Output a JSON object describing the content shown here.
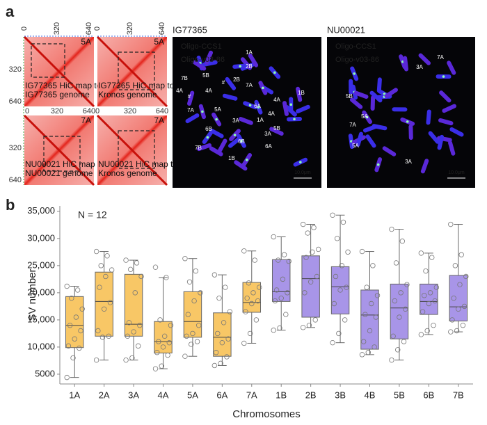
{
  "panel_a": {
    "label": "a",
    "axis_ticks": [
      0,
      320,
      640
    ],
    "hic_maps": [
      {
        "chrom": "5A",
        "caption": [
          "IG77365 HiC map to",
          "IG77365 genome"
        ]
      },
      {
        "chrom": "5A",
        "caption": [
          "IG77365 HiC map to",
          "Kronos genome"
        ]
      },
      {
        "chrom": "7A",
        "caption": [
          "NU00021 HiC map to",
          "NU00021 genome"
        ]
      },
      {
        "chrom": "7A",
        "caption": [
          "NU00021 HiC map to",
          "Kronos genome"
        ]
      }
    ],
    "images": [
      {
        "title": "IG77365",
        "probes": [
          "Oligo-CCS1",
          "Oligo-v03-86"
        ],
        "scale_bar": "10.0μm",
        "chromosome_labels": [
          "1A",
          "2B",
          "5B",
          "7B",
          "2B",
          "4A",
          "#",
          "4A",
          "7A",
          "1B",
          "#",
          "4A",
          "6A",
          "7A",
          "5A",
          "4A",
          "1A",
          "3A",
          "6B",
          "5B",
          "3A",
          "6B",
          "7B",
          "6A",
          "1B"
        ]
      },
      {
        "title": "NU00021",
        "probes": [
          "Oligo-CCS1",
          "Oligo-v03-86"
        ],
        "scale_bar": "10.0μm",
        "chromosome_labels": [
          "7A",
          "3A",
          "5B",
          "5A",
          "7A",
          "5A",
          "3A"
        ]
      }
    ]
  },
  "chart_data": {
    "type": "box",
    "panel_label": "b",
    "annotation": "N = 12",
    "x_label": "Chromosomes",
    "y_label": "SV number",
    "categories": [
      "1A",
      "2A",
      "3A",
      "4A",
      "5A",
      "6A",
      "7A",
      "1B",
      "2B",
      "3B",
      "4B",
      "5B",
      "6B",
      "7B"
    ],
    "colors": [
      "#f8c766",
      "#f8c766",
      "#f8c766",
      "#f8c766",
      "#f8c766",
      "#f8c766",
      "#f8c766",
      "#a895e8",
      "#a895e8",
      "#a895e8",
      "#a895e8",
      "#a895e8",
      "#a895e8",
      "#a895e8"
    ],
    "boxes": [
      {
        "min": 4400,
        "q1": 9900,
        "median": 14000,
        "q3": 19300,
        "max": 21200
      },
      {
        "min": 7600,
        "q1": 12000,
        "median": 18400,
        "q3": 23800,
        "max": 27600
      },
      {
        "min": 7600,
        "q1": 12000,
        "median": 14200,
        "q3": 23400,
        "max": 26000
      },
      {
        "min": 6000,
        "q1": 8900,
        "median": 11000,
        "q3": 14700,
        "max": 22800
      },
      {
        "min": 8300,
        "q1": 11800,
        "median": 14700,
        "q3": 20200,
        "max": 26300
      },
      {
        "min": 6600,
        "q1": 8300,
        "median": 11800,
        "q3": 16300,
        "max": 23300
      },
      {
        "min": 10700,
        "q1": 16400,
        "median": 18200,
        "q3": 21900,
        "max": 27700
      },
      {
        "min": 13100,
        "q1": 18400,
        "median": 20200,
        "q3": 26100,
        "max": 30300
      },
      {
        "min": 13600,
        "q1": 15500,
        "median": 22600,
        "q3": 26800,
        "max": 32600
      },
      {
        "min": 10800,
        "q1": 16100,
        "median": 21100,
        "q3": 24800,
        "max": 34300
      },
      {
        "min": 8600,
        "q1": 9600,
        "median": 15900,
        "q3": 20500,
        "max": 27600
      },
      {
        "min": 7600,
        "q1": 11500,
        "median": 17200,
        "q3": 21600,
        "max": 31700
      },
      {
        "min": 12300,
        "q1": 16000,
        "median": 18400,
        "q3": 21600,
        "max": 27300
      },
      {
        "min": 12800,
        "q1": 14800,
        "median": 17400,
        "q3": 23200,
        "max": 32600
      }
    ],
    "points": [
      [
        21200,
        20500,
        19000,
        17000,
        15500,
        14000,
        13000,
        11500,
        10200,
        9800,
        8000,
        4400
      ],
      [
        27600,
        26800,
        25000,
        24200,
        23000,
        21000,
        18200,
        17000,
        13000,
        12000,
        11800,
        7600
      ],
      [
        26000,
        25500,
        24300,
        23000,
        20000,
        14500,
        14000,
        12800,
        12000,
        10200,
        8000,
        7600
      ],
      [
        24700,
        22800,
        15000,
        14000,
        12000,
        11000,
        10800,
        10000,
        9000,
        8500,
        6500,
        6000
      ],
      [
        26300,
        24000,
        22000,
        20000,
        18500,
        16000,
        14000,
        12500,
        12000,
        11000,
        10500,
        8300
      ],
      [
        23300,
        21000,
        19000,
        16500,
        14500,
        12500,
        11500,
        10800,
        9000,
        8200,
        7000,
        6600
      ],
      [
        27700,
        26000,
        21800,
        21000,
        20000,
        19000,
        18500,
        18000,
        16500,
        15000,
        12500,
        10700
      ],
      [
        30300,
        27000,
        26000,
        25800,
        22500,
        20500,
        20000,
        19000,
        18500,
        16000,
        13500,
        13100
      ],
      [
        32600,
        32000,
        31000,
        28000,
        27500,
        26500,
        23000,
        22000,
        20000,
        15000,
        14000,
        13600
      ],
      [
        34300,
        33000,
        30000,
        27500,
        25000,
        23000,
        21000,
        20500,
        18000,
        15000,
        12500,
        10800
      ],
      [
        27600,
        25000,
        21000,
        19500,
        18000,
        16000,
        15500,
        13000,
        11000,
        10000,
        9000,
        8600
      ],
      [
        31700,
        29500,
        25500,
        21500,
        20000,
        18500,
        17000,
        15500,
        12000,
        11000,
        9500,
        7600
      ],
      [
        27300,
        26500,
        24000,
        21000,
        20000,
        19500,
        18500,
        18000,
        16500,
        14000,
        13000,
        12300
      ],
      [
        32600,
        27000,
        25000,
        23000,
        21500,
        19000,
        17500,
        17000,
        15000,
        14000,
        13000,
        12800
      ]
    ],
    "ylim": [
      3200,
      36000
    ],
    "yticks": [
      5000,
      {
        "value": 10000,
        "label": "10,000"
      },
      {
        "value": 15000,
        "label": "15,000"
      },
      {
        "value": 20000,
        "label": "20,000"
      },
      {
        "value": 25000,
        "label": "25,000"
      },
      {
        "value": 30000,
        "label": "30,000"
      },
      {
        "value": 35000,
        "label": "35,000"
      }
    ],
    "grid": false
  }
}
